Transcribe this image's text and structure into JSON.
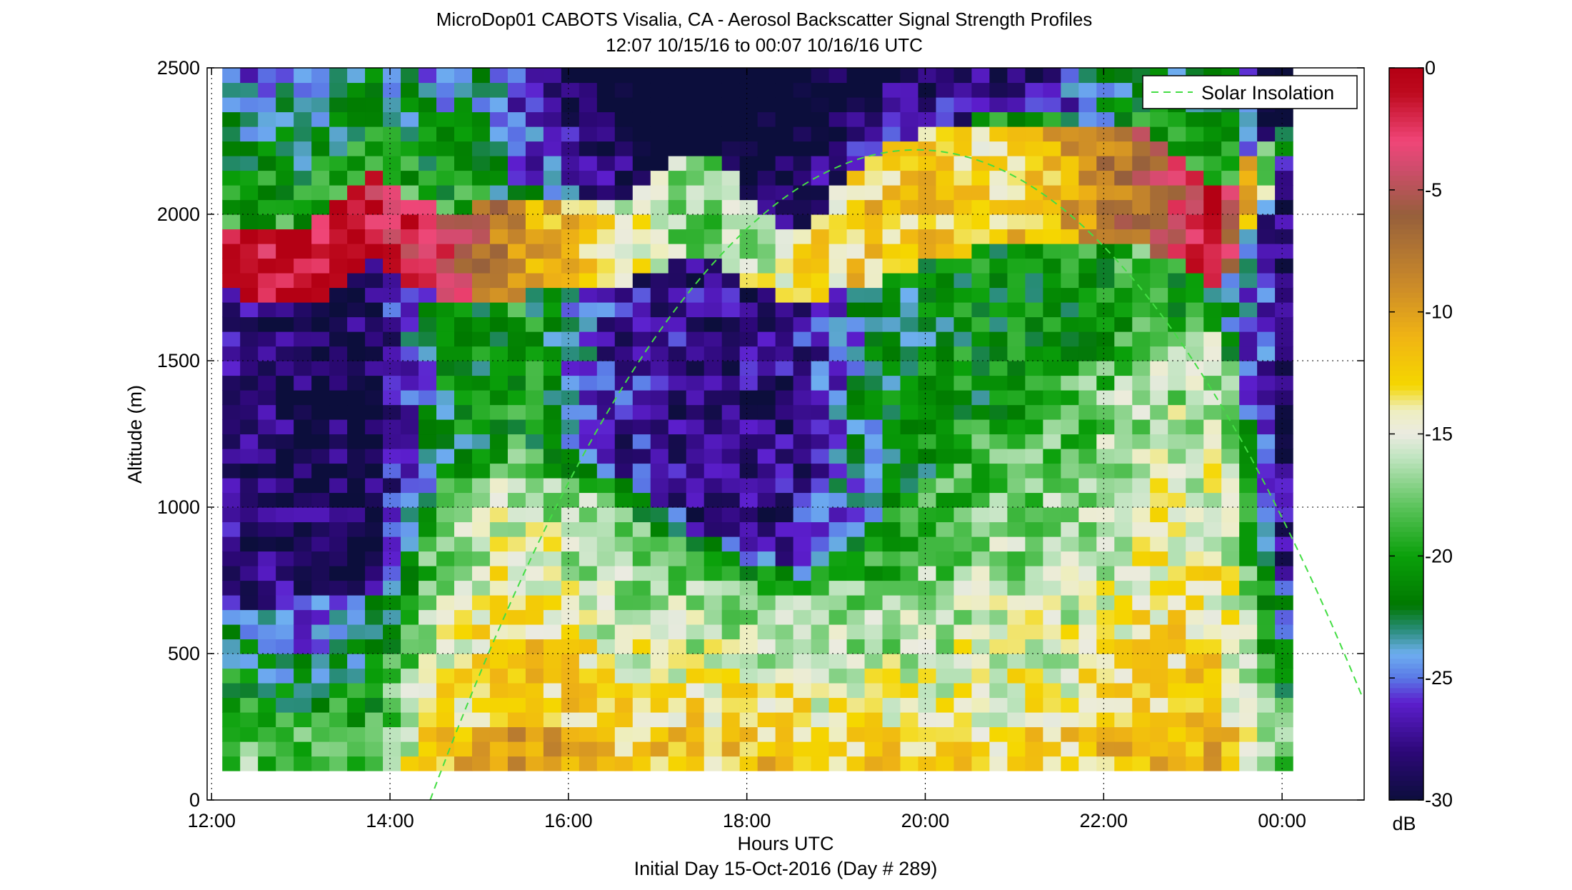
{
  "chart_data": {
    "type": "heatmap",
    "title": "MicroDop01 CABOTS Visalia, CA - Aerosol Backscatter Signal Strength Profiles",
    "subtitle": "12:07 10/15/16 to 00:07 10/16/16  UTC",
    "xlabel": "Hours UTC",
    "xlabel2": "Initial Day 15-Oct-2016 (Day # 289)",
    "ylabel": "Altitude (m)",
    "x_range_hours": [
      11.95,
      24.92
    ],
    "ylim": [
      0,
      2500
    ],
    "x_ticks": [
      {
        "value": 12,
        "label": "12:00"
      },
      {
        "value": 14,
        "label": "14:00"
      },
      {
        "value": 16,
        "label": "16:00"
      },
      {
        "value": 18,
        "label": "18:00"
      },
      {
        "value": 20,
        "label": "20:00"
      },
      {
        "value": 22,
        "label": "22:00"
      },
      {
        "value": 24,
        "label": "00:00"
      }
    ],
    "y_ticks": [
      {
        "value": 0,
        "label": "0"
      },
      {
        "value": 500,
        "label": "500"
      },
      {
        "value": 1000,
        "label": "1000"
      },
      {
        "value": 1500,
        "label": "1500"
      },
      {
        "value": 2000,
        "label": "2000"
      },
      {
        "value": 2500,
        "label": "2500"
      }
    ],
    "grid": true,
    "data_extent": {
      "x_start_hours": 12.12,
      "x_end_hours": 24.12,
      "alt_min": 100,
      "alt_max": 2500
    },
    "colorbar": {
      "label": "dB",
      "range": [
        -30,
        0
      ],
      "ticks": [
        {
          "value": 0,
          "label": "0"
        },
        {
          "value": -5,
          "label": "-5"
        },
        {
          "value": -10,
          "label": "-10"
        },
        {
          "value": -15,
          "label": "-15"
        },
        {
          "value": -20,
          "label": "-20"
        },
        {
          "value": -25,
          "label": "-25"
        },
        {
          "value": -30,
          "label": "-30"
        }
      ]
    },
    "legend": {
      "position": "top-right",
      "entries": [
        {
          "name": "Solar Insolation",
          "color": "#44dd44",
          "style": "dashed"
        }
      ]
    },
    "profile_keyframes": [
      {
        "t": 12.12,
        "sfc": -18,
        "lid": 550,
        "mid": -28,
        "top": 1850,
        "topdb": -1,
        "thick": 200
      },
      {
        "t": 13.0,
        "sfc": -20,
        "lid": 600,
        "mid": -29,
        "top": 1800,
        "topdb": -1,
        "thick": 250
      },
      {
        "t": 13.8,
        "sfc": -19,
        "lid": 650,
        "mid": -29,
        "top": 2000,
        "topdb": -2,
        "thick": 300
      },
      {
        "t": 14.6,
        "sfc": -13,
        "lid": 1000,
        "mid": -22,
        "top": 1850,
        "topdb": -3,
        "thick": 300
      },
      {
        "t": 15.5,
        "sfc": -11,
        "lid": 1100,
        "mid": -20,
        "top": 1900,
        "topdb": -10,
        "thick": 350
      },
      {
        "t": 16.5,
        "sfc": -13,
        "lid": 1000,
        "mid": -27,
        "top": 1900,
        "topdb": -14,
        "thick": 300
      },
      {
        "t": 17.5,
        "sfc": -13,
        "lid": 800,
        "mid": -28,
        "top": 2050,
        "topdb": -18,
        "thick": 350
      },
      {
        "t": 18.5,
        "sfc": -13,
        "lid": 700,
        "mid": -28,
        "top": 1800,
        "topdb": -14,
        "thick": 250
      },
      {
        "t": 19.5,
        "sfc": -14,
        "lid": 800,
        "mid": -22,
        "top": 2000,
        "topdb": -12,
        "thick": 450
      },
      {
        "t": 20.5,
        "sfc": -14,
        "lid": 1200,
        "mid": -21,
        "top": 2100,
        "topdb": -13,
        "thick": 450
      },
      {
        "t": 21.5,
        "sfc": -14,
        "lid": 1400,
        "mid": -21,
        "top": 2100,
        "topdb": -11,
        "thick": 450
      },
      {
        "t": 22.5,
        "sfc": -12,
        "lid": 1500,
        "mid": -19,
        "top": 2100,
        "topdb": -6,
        "thick": 400
      },
      {
        "t": 23.3,
        "sfc": -12,
        "lid": 1600,
        "mid": -22,
        "top": 1900,
        "topdb": -1,
        "thick": 350
      },
      {
        "t": 24.12,
        "sfc": -20,
        "lid": 550,
        "mid": -29,
        "top": 2300,
        "topdb": -25,
        "thick": 100
      }
    ],
    "solar_insolation": {
      "start_hours": 14.45,
      "end_hours": 25.0,
      "peak_hours": 19.9,
      "peak_altitude": 2220,
      "base_altitude": 0
    }
  }
}
